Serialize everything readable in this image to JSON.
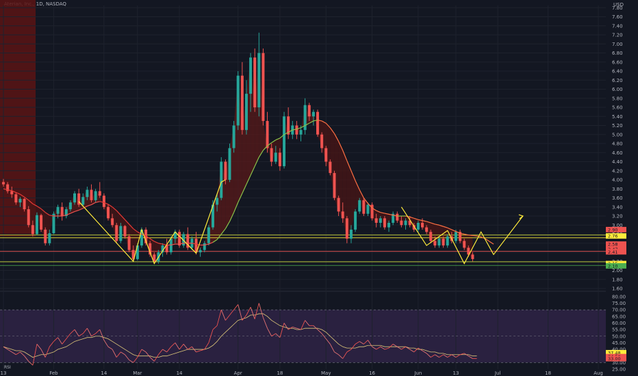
{
  "symbol_title": "Aterian, Inc., 1D, NASDAQ",
  "price_axis_unit": "USD",
  "rsi_label": "RSI",
  "colors": {
    "background": "#131722",
    "up": "#26a69a",
    "down": "#ef5350",
    "rsi_band": "#2a2140",
    "zigzag": "#ffeb3b"
  },
  "chart_data": [
    {
      "type": "candlestick",
      "title": "",
      "x_ticks": [
        "13",
        "Feb",
        "14",
        "Mar",
        "14",
        "Apr",
        "18",
        "May",
        "16",
        "Jun",
        "13",
        "Jul",
        "18",
        "Aug"
      ],
      "y_ticks": [
        "1.60",
        "1.80",
        "2.00",
        "2.20",
        "2.40",
        "2.60",
        "2.80",
        "3.00",
        "3.20",
        "3.40",
        "3.60",
        "3.80",
        "4.00",
        "4.20",
        "4.40",
        "4.60",
        "4.80",
        "5.00",
        "5.20",
        "5.40",
        "5.60",
        "5.80",
        "6.00",
        "6.20",
        "6.40",
        "6.60",
        "6.80",
        "7.00",
        "7.20",
        "7.40",
        "7.60",
        "7.80"
      ],
      "ylim": [
        1.6,
        7.85
      ],
      "y_unit": "USD",
      "price_tags": [
        {
          "value": 2.9,
          "label": "2.90",
          "color": "#ef5350"
        },
        {
          "value": 2.76,
          "label": "2.76",
          "color": "#ffeb3b"
        },
        {
          "value": 2.58,
          "label": "2.58",
          "color": "#ef5350"
        },
        {
          "value": 2.47,
          "label": "2.47",
          "color": "#ef5350"
        },
        {
          "value": 2.41,
          "label": "2.41",
          "color": "#ef5350"
        },
        {
          "value": 2.15,
          "label": "2.15",
          "color": "#ffeb3b"
        },
        {
          "value": 2.1,
          "label": "2.10",
          "color": "#4caf50"
        }
      ],
      "horizontal_levels": [
        {
          "value": 2.78,
          "color": "#cddc39"
        },
        {
          "value": 2.72,
          "color": "#ffeb3b"
        },
        {
          "value": 2.42,
          "color": "#ef5350"
        },
        {
          "value": 2.19,
          "color": "#cddc39"
        },
        {
          "value": 2.11,
          "color": "#4caf50"
        }
      ],
      "candles": [
        {
          "o": 3.95,
          "h": 4.02,
          "l": 3.85,
          "c": 3.9
        },
        {
          "o": 3.9,
          "h": 3.95,
          "l": 3.7,
          "c": 3.75
        },
        {
          "o": 3.75,
          "h": 3.85,
          "l": 3.6,
          "c": 3.68
        },
        {
          "o": 3.68,
          "h": 3.72,
          "l": 3.45,
          "c": 3.5
        },
        {
          "o": 3.5,
          "h": 3.62,
          "l": 3.4,
          "c": 3.58
        },
        {
          "o": 3.58,
          "h": 3.6,
          "l": 3.3,
          "c": 3.35
        },
        {
          "o": 3.35,
          "h": 3.42,
          "l": 2.95,
          "c": 3.0
        },
        {
          "o": 3.0,
          "h": 3.1,
          "l": 2.75,
          "c": 2.8
        },
        {
          "o": 2.8,
          "h": 3.28,
          "l": 2.78,
          "c": 3.22
        },
        {
          "o": 3.22,
          "h": 3.25,
          "l": 2.85,
          "c": 2.9
        },
        {
          "o": 2.9,
          "h": 2.95,
          "l": 2.55,
          "c": 2.6
        },
        {
          "o": 2.6,
          "h": 2.9,
          "l": 2.55,
          "c": 2.82
        },
        {
          "o": 2.82,
          "h": 3.3,
          "l": 2.8,
          "c": 3.25
        },
        {
          "o": 3.25,
          "h": 3.45,
          "l": 3.15,
          "c": 3.4
        },
        {
          "o": 3.4,
          "h": 3.5,
          "l": 3.1,
          "c": 3.2
        },
        {
          "o": 3.2,
          "h": 3.4,
          "l": 3.15,
          "c": 3.35
        },
        {
          "o": 3.35,
          "h": 3.55,
          "l": 3.3,
          "c": 3.5
        },
        {
          "o": 3.5,
          "h": 3.75,
          "l": 3.45,
          "c": 3.7
        },
        {
          "o": 3.7,
          "h": 3.8,
          "l": 3.4,
          "c": 3.45
        },
        {
          "o": 3.45,
          "h": 3.7,
          "l": 3.4,
          "c": 3.62
        },
        {
          "o": 3.62,
          "h": 3.85,
          "l": 3.55,
          "c": 3.78
        },
        {
          "o": 3.78,
          "h": 3.9,
          "l": 3.5,
          "c": 3.55
        },
        {
          "o": 3.55,
          "h": 3.8,
          "l": 3.5,
          "c": 3.75
        },
        {
          "o": 3.75,
          "h": 3.95,
          "l": 3.6,
          "c": 3.65
        },
        {
          "o": 3.65,
          "h": 3.7,
          "l": 3.35,
          "c": 3.4
        },
        {
          "o": 3.4,
          "h": 3.45,
          "l": 3.1,
          "c": 3.15
        },
        {
          "o": 3.15,
          "h": 3.25,
          "l": 2.95,
          "c": 3.0
        },
        {
          "o": 3.0,
          "h": 3.05,
          "l": 2.6,
          "c": 2.65
        },
        {
          "o": 2.65,
          "h": 3.05,
          "l": 2.6,
          "c": 2.98
        },
        {
          "o": 2.98,
          "h": 3.0,
          "l": 2.7,
          "c": 2.75
        },
        {
          "o": 2.75,
          "h": 2.8,
          "l": 2.4,
          "c": 2.45
        },
        {
          "o": 2.45,
          "h": 2.55,
          "l": 2.2,
          "c": 2.25
        },
        {
          "o": 2.25,
          "h": 2.6,
          "l": 2.22,
          "c": 2.55
        },
        {
          "o": 2.55,
          "h": 2.95,
          "l": 2.5,
          "c": 2.9
        },
        {
          "o": 2.9,
          "h": 2.95,
          "l": 2.55,
          "c": 2.6
        },
        {
          "o": 2.6,
          "h": 2.65,
          "l": 2.3,
          "c": 2.35
        },
        {
          "o": 2.35,
          "h": 2.4,
          "l": 2.15,
          "c": 2.2
        },
        {
          "o": 2.2,
          "h": 2.45,
          "l": 2.15,
          "c": 2.4
        },
        {
          "o": 2.4,
          "h": 2.6,
          "l": 2.3,
          "c": 2.55
        },
        {
          "o": 2.55,
          "h": 2.7,
          "l": 2.35,
          "c": 2.4
        },
        {
          "o": 2.4,
          "h": 2.75,
          "l": 2.35,
          "c": 2.7
        },
        {
          "o": 2.7,
          "h": 2.9,
          "l": 2.6,
          "c": 2.85
        },
        {
          "o": 2.85,
          "h": 2.9,
          "l": 2.5,
          "c": 2.55
        },
        {
          "o": 2.55,
          "h": 2.85,
          "l": 2.5,
          "c": 2.8
        },
        {
          "o": 2.8,
          "h": 2.95,
          "l": 2.45,
          "c": 2.5
        },
        {
          "o": 2.5,
          "h": 2.75,
          "l": 2.45,
          "c": 2.7
        },
        {
          "o": 2.7,
          "h": 2.85,
          "l": 2.35,
          "c": 2.4
        },
        {
          "o": 2.4,
          "h": 2.5,
          "l": 2.3,
          "c": 2.45
        },
        {
          "o": 2.45,
          "h": 2.65,
          "l": 2.4,
          "c": 2.6
        },
        {
          "o": 2.6,
          "h": 3.0,
          "l": 2.55,
          "c": 2.95
        },
        {
          "o": 2.95,
          "h": 3.55,
          "l": 2.9,
          "c": 3.45
        },
        {
          "o": 3.45,
          "h": 3.7,
          "l": 3.3,
          "c": 3.6
        },
        {
          "o": 3.6,
          "h": 4.5,
          "l": 3.55,
          "c": 4.4
        },
        {
          "o": 4.4,
          "h": 4.45,
          "l": 3.9,
          "c": 4.0
        },
        {
          "o": 4.0,
          "h": 4.8,
          "l": 3.95,
          "c": 4.7
        },
        {
          "o": 4.7,
          "h": 5.3,
          "l": 4.6,
          "c": 5.2
        },
        {
          "o": 5.2,
          "h": 6.4,
          "l": 5.1,
          "c": 6.3
        },
        {
          "o": 6.3,
          "h": 6.6,
          "l": 5.0,
          "c": 5.1
        },
        {
          "o": 5.1,
          "h": 6.2,
          "l": 5.0,
          "c": 5.9
        },
        {
          "o": 5.9,
          "h": 6.8,
          "l": 5.5,
          "c": 6.7
        },
        {
          "o": 6.7,
          "h": 6.9,
          "l": 5.5,
          "c": 5.6
        },
        {
          "o": 5.6,
          "h": 7.25,
          "l": 5.4,
          "c": 6.8
        },
        {
          "o": 6.8,
          "h": 6.9,
          "l": 5.2,
          "c": 5.3
        },
        {
          "o": 5.3,
          "h": 5.5,
          "l": 4.6,
          "c": 4.7
        },
        {
          "o": 4.7,
          "h": 4.8,
          "l": 4.3,
          "c": 4.4
        },
        {
          "o": 4.4,
          "h": 4.75,
          "l": 4.35,
          "c": 4.6
        },
        {
          "o": 4.6,
          "h": 4.7,
          "l": 4.2,
          "c": 4.3
        },
        {
          "o": 4.3,
          "h": 5.5,
          "l": 4.25,
          "c": 5.4
        },
        {
          "o": 5.4,
          "h": 5.6,
          "l": 4.9,
          "c": 5.0
        },
        {
          "o": 5.0,
          "h": 5.3,
          "l": 4.9,
          "c": 5.2
        },
        {
          "o": 5.2,
          "h": 5.3,
          "l": 4.9,
          "c": 5.0
        },
        {
          "o": 5.0,
          "h": 5.2,
          "l": 4.85,
          "c": 5.1
        },
        {
          "o": 5.1,
          "h": 5.8,
          "l": 5.0,
          "c": 5.65
        },
        {
          "o": 5.65,
          "h": 5.7,
          "l": 5.3,
          "c": 5.4
        },
        {
          "o": 5.4,
          "h": 5.55,
          "l": 5.2,
          "c": 5.5
        },
        {
          "o": 5.5,
          "h": 5.55,
          "l": 4.95,
          "c": 5.0
        },
        {
          "o": 5.0,
          "h": 5.05,
          "l": 4.6,
          "c": 4.7
        },
        {
          "o": 4.7,
          "h": 4.75,
          "l": 4.3,
          "c": 4.4
        },
        {
          "o": 4.4,
          "h": 4.45,
          "l": 4.1,
          "c": 4.15
        },
        {
          "o": 4.15,
          "h": 4.2,
          "l": 3.55,
          "c": 3.6
        },
        {
          "o": 3.6,
          "h": 3.65,
          "l": 3.2,
          "c": 3.3
        },
        {
          "o": 3.3,
          "h": 3.5,
          "l": 3.05,
          "c": 3.15
        },
        {
          "o": 3.15,
          "h": 3.2,
          "l": 2.6,
          "c": 2.7
        },
        {
          "o": 2.7,
          "h": 3.0,
          "l": 2.6,
          "c": 2.9
        },
        {
          "o": 2.9,
          "h": 3.35,
          "l": 2.85,
          "c": 3.3
        },
        {
          "o": 3.3,
          "h": 3.6,
          "l": 3.25,
          "c": 3.55
        },
        {
          "o": 3.55,
          "h": 3.6,
          "l": 3.2,
          "c": 3.25
        },
        {
          "o": 3.25,
          "h": 3.5,
          "l": 3.2,
          "c": 3.45
        },
        {
          "o": 3.45,
          "h": 3.5,
          "l": 3.1,
          "c": 3.15
        },
        {
          "o": 3.15,
          "h": 3.25,
          "l": 2.95,
          "c": 3.05
        },
        {
          "o": 3.05,
          "h": 3.2,
          "l": 2.95,
          "c": 3.15
        },
        {
          "o": 3.15,
          "h": 3.2,
          "l": 2.9,
          "c": 2.95
        },
        {
          "o": 2.95,
          "h": 3.1,
          "l": 2.85,
          "c": 3.05
        },
        {
          "o": 3.05,
          "h": 3.3,
          "l": 3.0,
          "c": 3.25
        },
        {
          "o": 3.25,
          "h": 3.3,
          "l": 3.05,
          "c": 3.1
        },
        {
          "o": 3.1,
          "h": 3.2,
          "l": 2.95,
          "c": 3.0
        },
        {
          "o": 3.0,
          "h": 3.15,
          "l": 2.9,
          "c": 3.1
        },
        {
          "o": 3.1,
          "h": 3.2,
          "l": 2.95,
          "c": 3.0
        },
        {
          "o": 3.0,
          "h": 3.05,
          "l": 2.85,
          "c": 2.9
        },
        {
          "o": 2.9,
          "h": 3.1,
          "l": 2.85,
          "c": 3.05
        },
        {
          "o": 3.05,
          "h": 3.15,
          "l": 2.9,
          "c": 2.95
        },
        {
          "o": 2.95,
          "h": 3.0,
          "l": 2.8,
          "c": 2.85
        },
        {
          "o": 2.85,
          "h": 2.9,
          "l": 2.6,
          "c": 2.65
        },
        {
          "o": 2.65,
          "h": 2.75,
          "l": 2.5,
          "c": 2.55
        },
        {
          "o": 2.55,
          "h": 2.75,
          "l": 2.5,
          "c": 2.7
        },
        {
          "o": 2.7,
          "h": 2.75,
          "l": 2.5,
          "c": 2.55
        },
        {
          "o": 2.55,
          "h": 2.8,
          "l": 2.5,
          "c": 2.75
        },
        {
          "o": 2.75,
          "h": 2.85,
          "l": 2.6,
          "c": 2.65
        },
        {
          "o": 2.65,
          "h": 2.9,
          "l": 2.6,
          "c": 2.85
        },
        {
          "o": 2.85,
          "h": 2.9,
          "l": 2.6,
          "c": 2.65
        },
        {
          "o": 2.65,
          "h": 2.7,
          "l": 2.45,
          "c": 2.5
        },
        {
          "o": 2.5,
          "h": 2.55,
          "l": 2.3,
          "c": 2.35
        },
        {
          "o": 2.35,
          "h": 2.4,
          "l": 2.2,
          "c": 2.25
        }
      ],
      "moving_average": [
        3.8,
        3.78,
        3.76,
        3.72,
        3.68,
        3.62,
        3.55,
        3.47,
        3.42,
        3.36,
        3.28,
        3.22,
        3.2,
        3.2,
        3.2,
        3.22,
        3.26,
        3.3,
        3.33,
        3.37,
        3.42,
        3.45,
        3.5,
        3.52,
        3.5,
        3.46,
        3.4,
        3.32,
        3.22,
        3.12,
        3.02,
        2.92,
        2.85,
        2.8,
        2.76,
        2.7,
        2.64,
        2.6,
        2.58,
        2.56,
        2.56,
        2.58,
        2.58,
        2.6,
        2.6,
        2.6,
        2.58,
        2.56,
        2.56,
        2.58,
        2.62,
        2.68,
        2.8,
        2.92,
        3.08,
        3.28,
        3.5,
        3.7,
        3.9,
        4.1,
        4.3,
        4.5,
        4.65,
        4.75,
        4.82,
        4.88,
        4.92,
        5.0,
        5.05,
        5.1,
        5.12,
        5.15,
        5.2,
        5.25,
        5.3,
        5.32,
        5.3,
        5.25,
        5.15,
        5.02,
        4.85,
        4.65,
        4.42,
        4.2,
        3.98,
        3.78,
        3.6,
        3.48,
        3.38,
        3.32,
        3.28,
        3.26,
        3.24,
        3.22,
        3.2,
        3.2,
        3.2,
        3.18,
        3.15,
        3.12,
        3.1,
        3.08,
        3.05,
        3.02,
        3.0,
        2.97,
        2.94,
        2.9,
        2.86,
        2.82,
        2.8,
        2.78,
        2.77,
        2.76,
        2.74,
        2.7,
        2.64,
        2.58
      ],
      "zigzag": [
        [
          18,
          3.52
        ],
        [
          31,
          2.2
        ],
        [
          33,
          2.9
        ],
        [
          36,
          2.15
        ],
        [
          41,
          2.85
        ],
        [
          46,
          2.38
        ],
        [
          52,
          3.95
        ],
        [
          53,
          4.0
        ]
      ],
      "zigzag_right": [
        [
          95,
          3.4
        ],
        [
          101,
          2.55
        ],
        [
          106,
          2.88
        ],
        [
          110,
          2.15
        ],
        [
          114,
          2.85
        ],
        [
          117,
          2.35
        ],
        [
          124,
          3.2
        ]
      ],
      "future_candle_count": 124
    },
    {
      "type": "line",
      "title": "",
      "name": "RSI",
      "y_ticks": [
        "25.00",
        "30.00",
        "35.00",
        "40.00",
        "45.00",
        "50.00",
        "55.00",
        "60.00",
        "65.00",
        "70.00",
        "75.00",
        "80.00"
      ],
      "ylim": [
        25,
        82
      ],
      "levels": [
        70,
        50,
        30
      ],
      "values": [
        42,
        40,
        38,
        36,
        38,
        35,
        31,
        28,
        44,
        40,
        34,
        42,
        46,
        49,
        44,
        48,
        52,
        55,
        50,
        52,
        56,
        50,
        52,
        55,
        47,
        42,
        40,
        34,
        38,
        36,
        32,
        30,
        34,
        40,
        38,
        34,
        31,
        36,
        40,
        38,
        42,
        45,
        40,
        44,
        40,
        42,
        38,
        39,
        40,
        45,
        55,
        58,
        70,
        62,
        66,
        70,
        74,
        62,
        66,
        72,
        63,
        75,
        64,
        56,
        50,
        52,
        49,
        60,
        55,
        57,
        56,
        55,
        62,
        58,
        58,
        55,
        52,
        48,
        44,
        38,
        36,
        33,
        38,
        40,
        44,
        46,
        44,
        47,
        42,
        40,
        42,
        40,
        41,
        44,
        42,
        40,
        42,
        40,
        38,
        41,
        39,
        37,
        34,
        36,
        34,
        36,
        34,
        36,
        34,
        36,
        37,
        35,
        33,
        33
      ],
      "signal": [
        42,
        41,
        40,
        39,
        39,
        38,
        36,
        34,
        35,
        36,
        36,
        37,
        38,
        40,
        41,
        42,
        44,
        46,
        47,
        48,
        49,
        49,
        50,
        50,
        49,
        48,
        46,
        44,
        42,
        40,
        38,
        36,
        35,
        35,
        35,
        35,
        34,
        34,
        35,
        35,
        36,
        37,
        38,
        39,
        40,
        40,
        40,
        40,
        40,
        41,
        43,
        46,
        50,
        53,
        56,
        59,
        62,
        63,
        64,
        66,
        66,
        67,
        67,
        65,
        62,
        60,
        58,
        57,
        56,
        56,
        55,
        55,
        56,
        56,
        56,
        56,
        55,
        53,
        50,
        47,
        44,
        42,
        41,
        41,
        41,
        42,
        42,
        43,
        43,
        43,
        43,
        42,
        42,
        42,
        42,
        42,
        42,
        41,
        41,
        40,
        40,
        39,
        38,
        38,
        37,
        37,
        36,
        36,
        36,
        36,
        36,
        36,
        35,
        35
      ],
      "tags": [
        {
          "value": 37.48,
          "label": "37.48",
          "color": "#ffeb3b"
        },
        {
          "value": 34.5,
          "label": "34.50",
          "color": "#ef5350"
        },
        {
          "value": 33.0,
          "label": "33.00",
          "color": "#ef5350"
        }
      ]
    }
  ]
}
